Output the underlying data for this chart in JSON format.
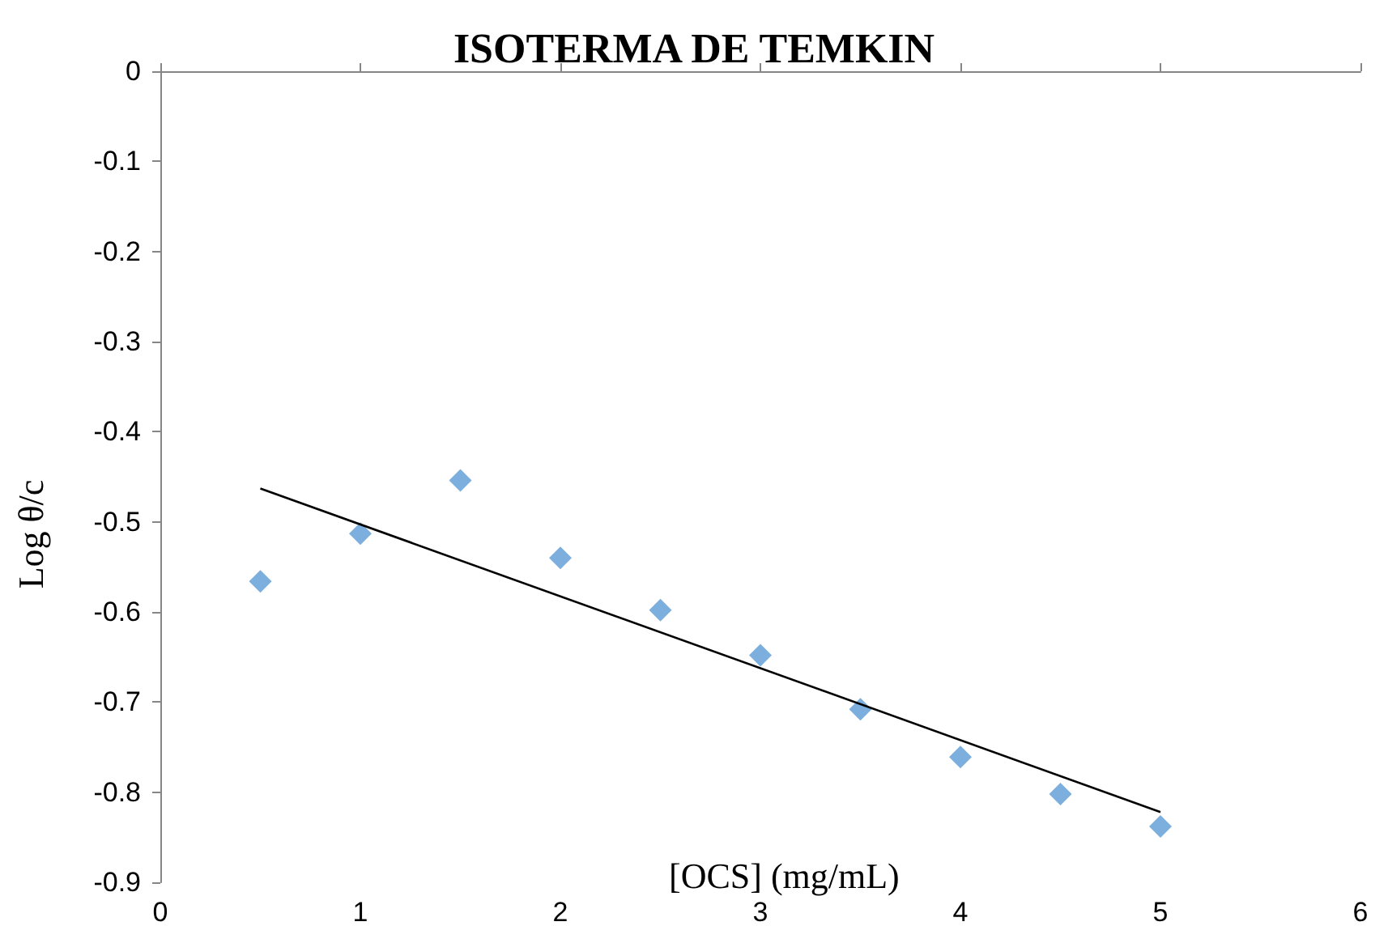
{
  "chart_data": {
    "type": "scatter",
    "title": "ISOTERMA DE TEMKIN",
    "xlabel": "[OCS] (mg/mL)",
    "ylabel": "Log θ/c",
    "xlim": [
      0,
      6
    ],
    "xticks": [
      0,
      1,
      2,
      3,
      4,
      5,
      6
    ],
    "ylim": [
      -0.9,
      0
    ],
    "yticks": [
      0,
      -0.1,
      -0.2,
      -0.3,
      -0.4,
      -0.5,
      -0.6,
      -0.7,
      -0.8,
      -0.9
    ],
    "grid": false,
    "marker": "diamond",
    "series": [
      {
        "color": "#5b9bd5",
        "x": [
          0.5,
          1,
          1.5,
          2,
          2.5,
          3,
          3.5,
          4,
          4.5,
          5
        ],
        "values": [
          -0.566,
          -0.513,
          -0.454,
          -0.54,
          -0.598,
          -0.648,
          -0.708,
          -0.761,
          -0.802,
          -0.838
        ]
      },
      {
        "type": "line",
        "color": "#000000",
        "line_style": "solid",
        "marker": "none",
        "x": [
          0.5,
          5
        ],
        "values": [
          -0.463,
          -0.822
        ]
      }
    ]
  }
}
